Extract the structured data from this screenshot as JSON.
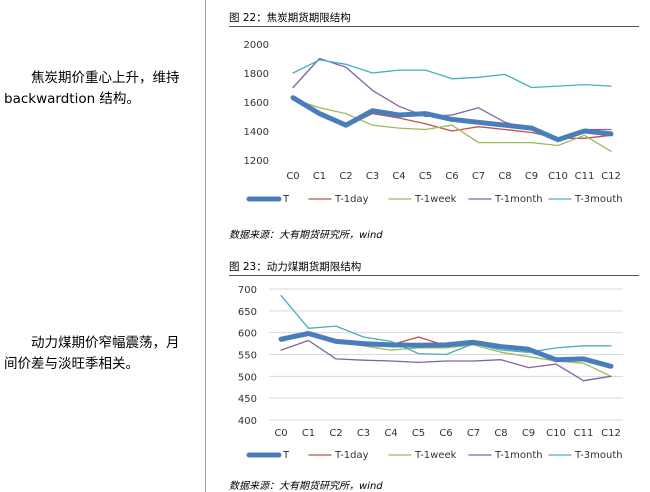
{
  "text": {
    "para1_line1": "焦炭期价重心上升，维持",
    "para1_line2": "backwardtion 结构。",
    "para2_line1": "动力煤期价窄幅震荡，月",
    "para2_line2": "间价差与淡旺季相关。"
  },
  "figures": [
    {
      "title": "图 22：焦炭期货期限结构",
      "source": "数据来源：大有期货研究所，wind"
    },
    {
      "title": "图 23：动力煤期货期限结构",
      "source": "数据来源：大有期货研究所，wind"
    }
  ],
  "chart_data": [
    {
      "type": "line",
      "categories": [
        "C0",
        "C1",
        "C2",
        "C3",
        "C4",
        "C5",
        "C6",
        "C7",
        "C8",
        "C9",
        "C10",
        "C11",
        "C12"
      ],
      "ylim": [
        1200,
        2000
      ],
      "yticks": [
        1200,
        1400,
        1600,
        1800,
        2000
      ],
      "grid": false,
      "legend_position": "bottom",
      "series": [
        {
          "name": "T",
          "color": "#4a7ebb",
          "width": 5,
          "values": [
            1630,
            1520,
            1440,
            1540,
            1510,
            1520,
            1480,
            1460,
            1440,
            1420,
            1340,
            1400,
            1380
          ]
        },
        {
          "name": "T-1day",
          "color": "#c0504d",
          "width": 1.3,
          "values": [
            1640,
            1530,
            1430,
            1520,
            1490,
            1450,
            1400,
            1430,
            1410,
            1390,
            1350,
            1350,
            1370
          ]
        },
        {
          "name": "T-1week",
          "color": "#9bbb59",
          "width": 1.3,
          "values": [
            1620,
            1560,
            1520,
            1440,
            1420,
            1410,
            1440,
            1320,
            1320,
            1320,
            1300,
            1370,
            1260
          ]
        },
        {
          "name": "T-1month",
          "color": "#8064a2",
          "width": 1.3,
          "values": [
            1700,
            1900,
            1840,
            1680,
            1570,
            1500,
            1510,
            1560,
            1460,
            1410,
            1330,
            1410,
            1410
          ]
        },
        {
          "name": "T-3mouth",
          "color": "#4bacc6",
          "width": 1.3,
          "values": [
            1800,
            1890,
            1860,
            1800,
            1820,
            1820,
            1760,
            1770,
            1790,
            1700,
            1710,
            1720,
            1710
          ]
        }
      ]
    },
    {
      "type": "line",
      "categories": [
        "C0",
        "C1",
        "C2",
        "C3",
        "C4",
        "C5",
        "C6",
        "C7",
        "C8",
        "C9",
        "C10",
        "C11",
        "C12"
      ],
      "ylim": [
        400,
        700
      ],
      "yticks": [
        400,
        450,
        500,
        550,
        600,
        650,
        700
      ],
      "grid": true,
      "legend_position": "bottom",
      "series": [
        {
          "name": "T",
          "color": "#4a7ebb",
          "width": 5,
          "values": [
            585,
            598,
            580,
            575,
            572,
            571,
            572,
            578,
            568,
            562,
            538,
            540,
            523
          ]
        },
        {
          "name": "T-1day",
          "color": "#c0504d",
          "width": 1.3,
          "values": [
            585,
            600,
            580,
            575,
            572,
            590,
            570,
            578,
            565,
            563,
            540,
            542,
            520
          ]
        },
        {
          "name": "T-1week",
          "color": "#9bbb59",
          "width": 1.3,
          "values": [
            580,
            595,
            578,
            570,
            560,
            565,
            565,
            572,
            555,
            545,
            535,
            530,
            500
          ]
        },
        {
          "name": "T-1month",
          "color": "#8064a2",
          "width": 1.3,
          "values": [
            560,
            582,
            540,
            537,
            535,
            532,
            535,
            535,
            538,
            520,
            528,
            490,
            500
          ]
        },
        {
          "name": "T-3mouth",
          "color": "#4bacc6",
          "width": 1.3,
          "values": [
            685,
            610,
            615,
            590,
            580,
            552,
            550,
            575,
            560,
            555,
            565,
            570,
            570
          ]
        }
      ]
    }
  ]
}
